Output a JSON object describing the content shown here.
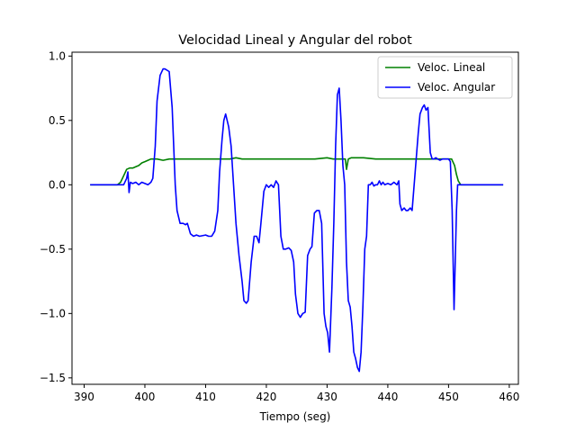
{
  "chart_data": {
    "type": "line",
    "title": "Velocidad Lineal y Angular del robot",
    "xlabel": "Tiempo (seg)",
    "ylabel": "",
    "xlim": [
      388.0,
      461.5
    ],
    "ylim": [
      -1.55,
      1.03
    ],
    "xticks": [
      390,
      400,
      410,
      420,
      430,
      440,
      450,
      460
    ],
    "yticks": [
      -1.5,
      -1.0,
      -0.5,
      0.0,
      0.5,
      1.0
    ],
    "xtick_labels": [
      "390",
      "400",
      "410",
      "420",
      "430",
      "440",
      "450",
      "460"
    ],
    "ytick_labels": [
      "−1.5",
      "−1.0",
      "−0.5",
      "0.0",
      "0.5",
      "1.0"
    ],
    "grid": false,
    "legend_position": "top-right",
    "series": [
      {
        "name": "Veloc. Lineal",
        "color": "#008000",
        "x": [
          391.0,
          395.5,
          396.0,
          396.5,
          397.0,
          397.5,
          398.0,
          398.5,
          399.0,
          399.5,
          400.0,
          400.5,
          401.0,
          402.0,
          403.0,
          404.0,
          405.0,
          406.0,
          408.0,
          410.0,
          412.0,
          414.0,
          415.0,
          416.0,
          418.0,
          420.0,
          422.0,
          424.0,
          426.0,
          428.0,
          430.0,
          431.0,
          432.0,
          433.0,
          433.2,
          433.5,
          434.0,
          435.0,
          436.0,
          438.0,
          440.0,
          442.0,
          444.0,
          446.0,
          448.0,
          450.0,
          450.5,
          451.0,
          451.3,
          451.6,
          452.0,
          459.0
        ],
        "y": [
          0.0,
          0.0,
          0.02,
          0.07,
          0.12,
          0.13,
          0.13,
          0.14,
          0.15,
          0.17,
          0.18,
          0.19,
          0.2,
          0.2,
          0.19,
          0.2,
          0.2,
          0.2,
          0.2,
          0.2,
          0.2,
          0.2,
          0.21,
          0.2,
          0.2,
          0.2,
          0.2,
          0.2,
          0.2,
          0.2,
          0.21,
          0.2,
          0.2,
          0.2,
          0.12,
          0.2,
          0.21,
          0.21,
          0.21,
          0.2,
          0.2,
          0.2,
          0.2,
          0.2,
          0.2,
          0.2,
          0.2,
          0.15,
          0.08,
          0.03,
          0.0,
          0.0
        ]
      },
      {
        "name": "Veloc. Angular",
        "color": "#0000ff",
        "x": [
          391.0,
          396.5,
          397.0,
          397.2,
          397.4,
          397.6,
          398.0,
          398.5,
          399.0,
          399.5,
          400.0,
          400.5,
          401.0,
          401.3,
          401.7,
          402.0,
          402.5,
          403.0,
          403.3,
          404.0,
          404.5,
          405.0,
          405.3,
          405.8,
          406.3,
          406.7,
          407.0,
          407.5,
          408.0,
          408.5,
          409.0,
          410.0,
          410.5,
          411.0,
          411.5,
          412.0,
          412.3,
          412.7,
          413.0,
          413.3,
          413.8,
          414.2,
          414.6,
          415.0,
          415.5,
          416.0,
          416.3,
          416.7,
          417.0,
          417.5,
          418.0,
          418.4,
          418.8,
          419.1,
          419.6,
          420.0,
          420.4,
          420.8,
          421.2,
          421.6,
          422.0,
          422.4,
          422.8,
          423.2,
          423.7,
          424.1,
          424.5,
          424.8,
          425.2,
          425.6,
          426.0,
          426.4,
          426.8,
          427.2,
          427.5,
          427.9,
          428.3,
          428.7,
          429.1,
          429.5,
          429.8,
          430.1,
          430.4,
          430.8,
          431.1,
          431.4,
          431.7,
          432.0,
          432.3,
          432.6,
          432.9,
          433.2,
          433.5,
          433.8,
          434.1,
          434.4,
          434.7,
          435.0,
          435.3,
          435.6,
          435.9,
          436.2,
          436.5,
          436.8,
          437.1,
          437.4,
          437.7,
          438.0,
          438.3,
          438.6,
          438.9,
          439.2,
          439.5,
          440.0,
          440.5,
          441.0,
          441.5,
          441.8,
          442.0,
          442.3,
          442.7,
          443.0,
          443.3,
          443.7,
          444.0,
          444.5,
          445.0,
          445.3,
          445.7,
          446.0,
          446.3,
          446.6,
          447.0,
          447.3,
          447.6,
          447.9,
          448.2,
          448.6,
          449.0,
          449.5,
          450.0,
          450.3,
          450.6,
          450.9,
          451.1,
          451.3,
          451.5,
          451.7,
          452.0,
          459.0
        ],
        "y": [
          0.0,
          0.0,
          0.05,
          0.1,
          -0.06,
          0.02,
          0.01,
          0.02,
          0.0,
          0.02,
          0.01,
          0.0,
          0.02,
          0.05,
          0.3,
          0.65,
          0.85,
          0.9,
          0.9,
          0.88,
          0.6,
          0.0,
          -0.2,
          -0.3,
          -0.3,
          -0.31,
          -0.3,
          -0.38,
          -0.4,
          -0.39,
          -0.4,
          -0.39,
          -0.4,
          -0.4,
          -0.36,
          -0.2,
          0.1,
          0.35,
          0.5,
          0.55,
          0.45,
          0.3,
          0.0,
          -0.3,
          -0.55,
          -0.75,
          -0.9,
          -0.92,
          -0.9,
          -0.6,
          -0.4,
          -0.4,
          -0.45,
          -0.3,
          -0.05,
          0.0,
          -0.02,
          0.0,
          -0.02,
          0.03,
          0.0,
          -0.4,
          -0.5,
          -0.5,
          -0.49,
          -0.51,
          -0.6,
          -0.85,
          -1.0,
          -1.03,
          -1.0,
          -0.99,
          -0.55,
          -0.5,
          -0.48,
          -0.22,
          -0.2,
          -0.2,
          -0.3,
          -1.0,
          -1.1,
          -1.15,
          -1.3,
          -0.8,
          -0.3,
          0.3,
          0.7,
          0.75,
          0.5,
          0.15,
          0.0,
          -0.6,
          -0.9,
          -0.95,
          -1.1,
          -1.3,
          -1.35,
          -1.42,
          -1.45,
          -1.3,
          -0.95,
          -0.5,
          -0.4,
          0.0,
          0.0,
          0.02,
          -0.01,
          0.0,
          0.0,
          0.03,
          0.0,
          0.02,
          0.0,
          0.01,
          0.0,
          0.02,
          0.0,
          0.03,
          -0.15,
          -0.2,
          -0.18,
          -0.2,
          -0.2,
          -0.18,
          -0.2,
          0.1,
          0.4,
          0.55,
          0.6,
          0.62,
          0.58,
          0.6,
          0.25,
          0.2,
          0.2,
          0.21,
          0.2,
          0.19,
          0.2,
          0.2,
          0.2,
          0.18,
          -0.2,
          -0.97,
          -0.6,
          -0.2,
          0.0,
          0.0,
          0.0,
          0.0
        ]
      }
    ]
  }
}
